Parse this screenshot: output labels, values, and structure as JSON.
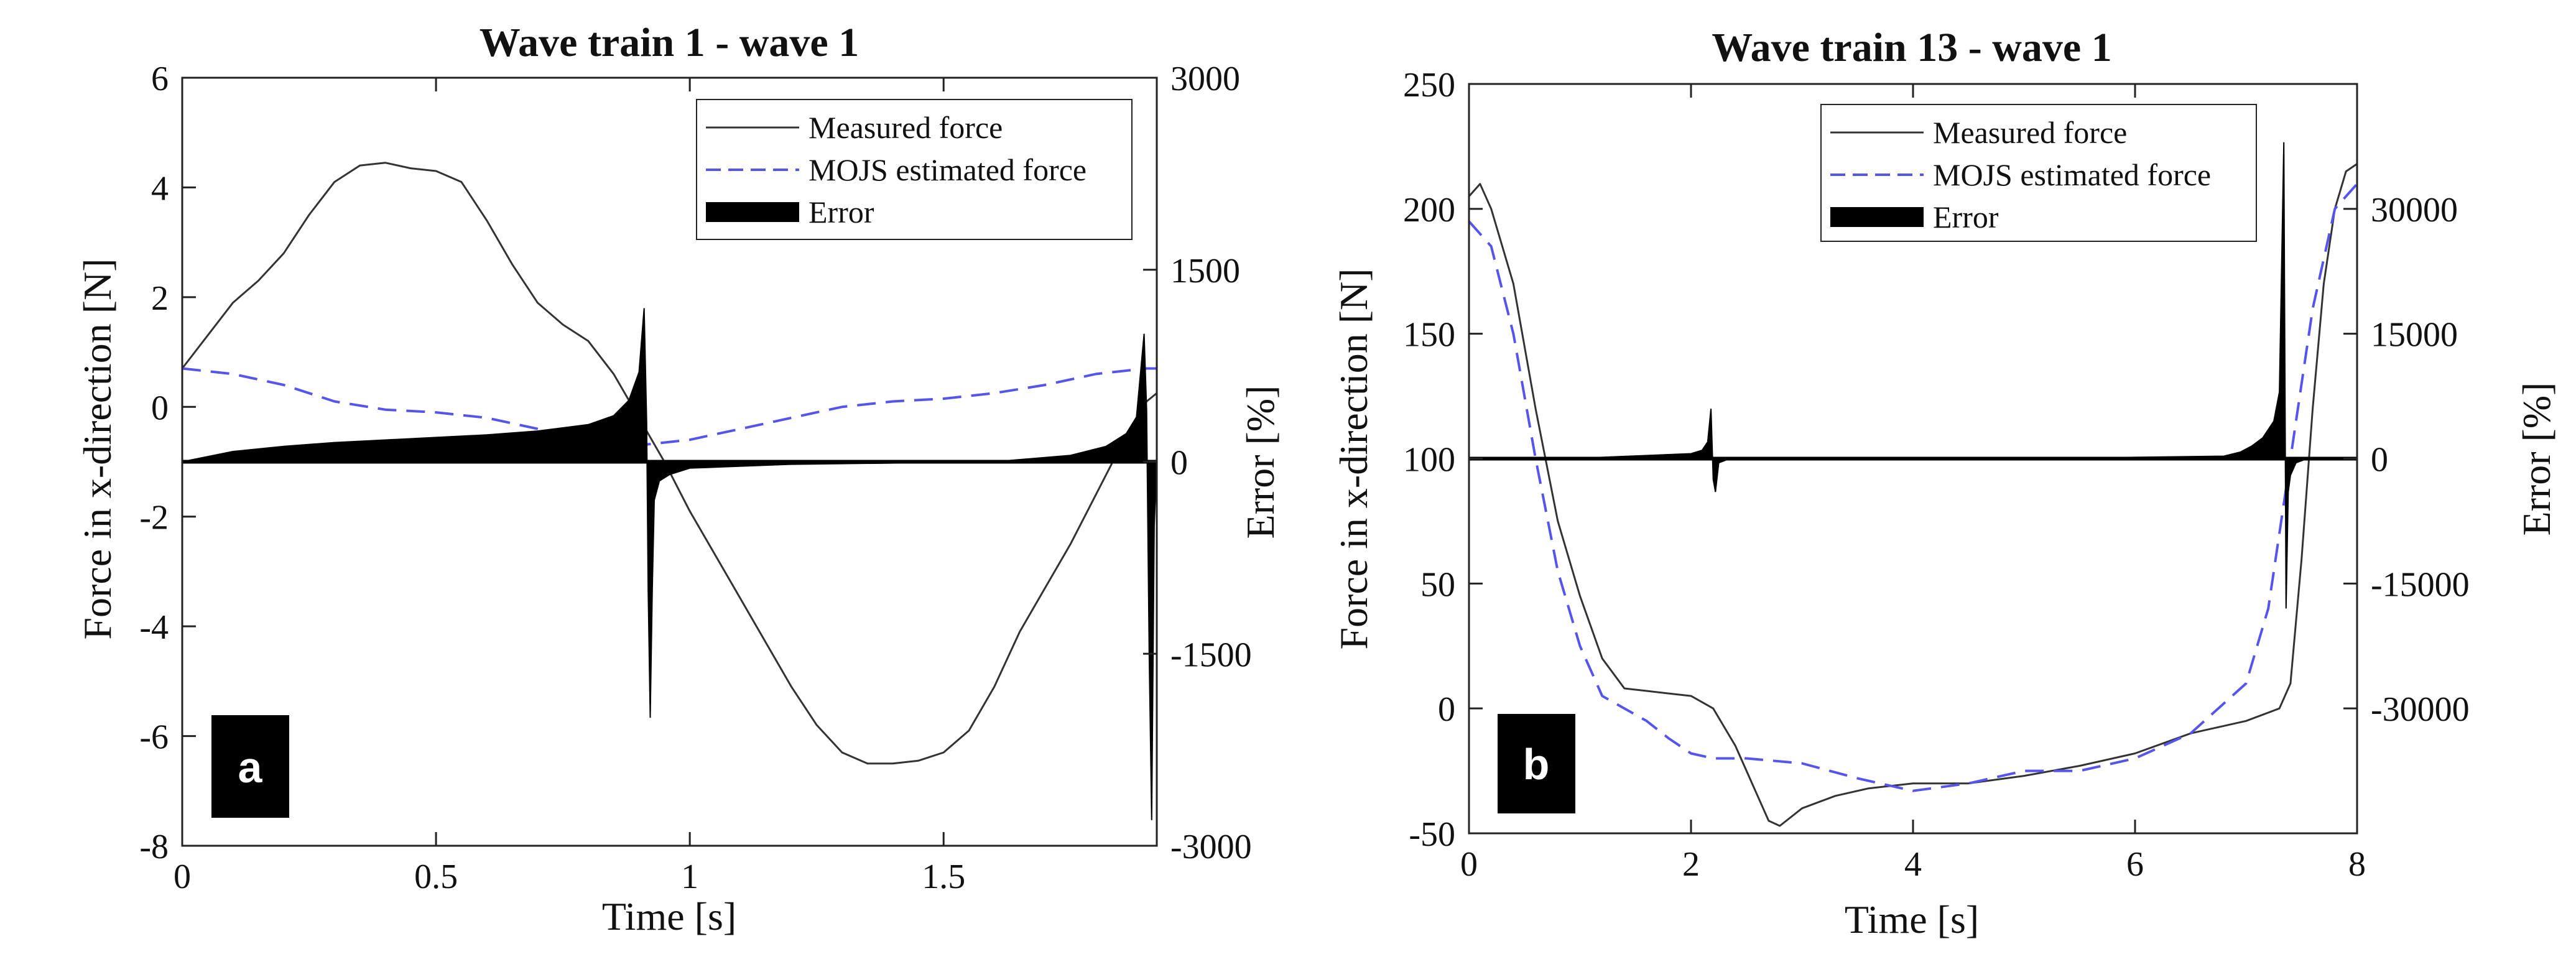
{
  "colors": {
    "measured": "#333333",
    "estimated": "#5555ee",
    "error": "#000000",
    "axis": "#222222",
    "badge_bg": "#000000",
    "badge_text": "#ffffff"
  },
  "chart_data": [
    {
      "type": "line",
      "panel_label": "a",
      "title": "Wave train 1 - wave 1",
      "xlabel": "Time [s]",
      "ylabel": "Force in x-direction [N]",
      "y2label": "Error [%]",
      "xlim": [
        0,
        1.92
      ],
      "ylim": [
        -8,
        6
      ],
      "y2lim": [
        -3000,
        3000
      ],
      "x_ticks": [
        0,
        0.5,
        1,
        1.5
      ],
      "x_tick_labels": [
        "0",
        "0.5",
        "1",
        "1.5"
      ],
      "y_ticks": [
        -8,
        -6,
        -4,
        -2,
        0,
        2,
        4,
        6
      ],
      "y_tick_labels": [
        "-8",
        "-6",
        "-4",
        "-2",
        "0",
        "2",
        "4",
        "6"
      ],
      "y2_ticks": [
        -3000,
        -1500,
        0,
        1500,
        3000
      ],
      "y2_tick_labels": [
        "-3000",
        "-1500",
        "0",
        "1500",
        "3000"
      ],
      "legend": {
        "position": "top-right",
        "entries": [
          "Measured force",
          "MOJS estimated force",
          "Error"
        ]
      },
      "series": [
        {
          "name": "Measured force",
          "axis": "left",
          "style": "solid",
          "x": [
            0,
            0.05,
            0.1,
            0.15,
            0.2,
            0.25,
            0.3,
            0.35,
            0.4,
            0.45,
            0.5,
            0.55,
            0.6,
            0.65,
            0.7,
            0.75,
            0.8,
            0.85,
            0.9,
            0.95,
            1.0,
            1.05,
            1.1,
            1.15,
            1.2,
            1.25,
            1.3,
            1.35,
            1.4,
            1.45,
            1.5,
            1.55,
            1.6,
            1.65,
            1.7,
            1.75,
            1.8,
            1.85,
            1.9,
            1.92
          ],
          "y": [
            0.7,
            1.3,
            1.9,
            2.3,
            2.8,
            3.5,
            4.1,
            4.4,
            4.45,
            4.35,
            4.3,
            4.1,
            3.4,
            2.6,
            1.9,
            1.5,
            1.2,
            0.6,
            -0.2,
            -1.0,
            -1.9,
            -2.7,
            -3.5,
            -4.3,
            -5.1,
            -5.8,
            -6.3,
            -6.5,
            -6.5,
            -6.45,
            -6.3,
            -5.9,
            -5.1,
            -4.1,
            -3.3,
            -2.5,
            -1.6,
            -0.7,
            0.1,
            0.25
          ]
        },
        {
          "name": "MOJS estimated force",
          "axis": "left",
          "style": "dashed",
          "x": [
            0,
            0.1,
            0.2,
            0.3,
            0.4,
            0.5,
            0.6,
            0.7,
            0.8,
            0.9,
            1.0,
            1.1,
            1.2,
            1.3,
            1.4,
            1.5,
            1.6,
            1.7,
            1.8,
            1.9,
            1.92
          ],
          "y": [
            0.7,
            0.6,
            0.4,
            0.1,
            -0.05,
            -0.1,
            -0.2,
            -0.4,
            -0.6,
            -0.7,
            -0.6,
            -0.4,
            -0.2,
            0.0,
            0.1,
            0.15,
            0.25,
            0.4,
            0.6,
            0.7,
            0.7
          ]
        },
        {
          "name": "Error",
          "axis": "right",
          "style": "filled",
          "x": [
            0,
            0.1,
            0.2,
            0.3,
            0.4,
            0.5,
            0.6,
            0.7,
            0.8,
            0.85,
            0.88,
            0.9,
            0.91,
            0.915,
            0.918,
            0.922,
            0.926,
            0.93,
            0.94,
            0.96,
            1.0,
            1.2,
            1.4,
            1.6,
            1.75,
            1.82,
            1.86,
            1.88,
            1.895,
            1.9,
            1.905,
            1.91,
            1.915,
            1.92
          ],
          "y": [
            0,
            80,
            120,
            150,
            170,
            190,
            210,
            240,
            290,
            360,
            480,
            700,
            1200,
            300,
            -1000,
            -2000,
            -1000,
            -300,
            -150,
            -100,
            -50,
            -20,
            -10,
            0,
            50,
            120,
            220,
            350,
            1000,
            400,
            -1500,
            -2800,
            -500,
            0
          ]
        }
      ]
    },
    {
      "type": "line",
      "panel_label": "b",
      "title": "Wave train 13 - wave 1",
      "xlabel": "Time [s]",
      "ylabel": "Force in x-direction [N]",
      "y2label": "Error [%]",
      "xlim": [
        0,
        8
      ],
      "ylim": [
        -50,
        250
      ],
      "y2lim": [
        -45000,
        45000
      ],
      "x_ticks": [
        0,
        2,
        4,
        6,
        8
      ],
      "x_tick_labels": [
        "0",
        "2",
        "4",
        "6",
        "8"
      ],
      "y_ticks": [
        -50,
        0,
        50,
        100,
        150,
        200,
        250
      ],
      "y_tick_labels": [
        "-50",
        "0",
        "50",
        "100",
        "150",
        "200",
        "250"
      ],
      "y2_ticks": [
        -30000,
        -15000,
        0,
        15000,
        30000
      ],
      "y2_tick_labels": [
        "-30000",
        "-15000",
        "0",
        "15000",
        "30000"
      ],
      "legend": {
        "position": "top-right",
        "entries": [
          "Measured force",
          "MOJS estimated force",
          "Error"
        ]
      },
      "series": [
        {
          "name": "Measured force",
          "axis": "left",
          "style": "solid",
          "x": [
            0,
            0.1,
            0.2,
            0.4,
            0.6,
            0.8,
            1.0,
            1.2,
            1.4,
            1.6,
            1.8,
            2.0,
            2.2,
            2.4,
            2.6,
            2.7,
            2.8,
            3.0,
            3.3,
            3.6,
            4.0,
            4.5,
            5.0,
            5.5,
            6.0,
            6.5,
            7.0,
            7.3,
            7.4,
            7.5,
            7.6,
            7.7,
            7.8,
            7.9,
            8.0
          ],
          "y": [
            205,
            210,
            200,
            170,
            120,
            75,
            45,
            20,
            8,
            7,
            6,
            5,
            0,
            -15,
            -35,
            -45,
            -47,
            -40,
            -35,
            -32,
            -30,
            -30,
            -27,
            -23,
            -18,
            -10,
            -5,
            0,
            10,
            60,
            120,
            170,
            200,
            215,
            218
          ]
        },
        {
          "name": "MOJS estimated force",
          "axis": "left",
          "style": "dashed",
          "x": [
            0,
            0.2,
            0.4,
            0.6,
            0.8,
            1.0,
            1.2,
            1.4,
            1.6,
            1.8,
            2.0,
            2.2,
            2.5,
            3.0,
            3.5,
            4.0,
            4.5,
            5.0,
            5.5,
            6.0,
            6.5,
            7.0,
            7.2,
            7.4,
            7.6,
            7.8,
            8.0
          ],
          "y": [
            195,
            185,
            150,
            100,
            55,
            25,
            5,
            0,
            -5,
            -12,
            -18,
            -20,
            -20,
            -22,
            -28,
            -33,
            -30,
            -25,
            -25,
            -20,
            -10,
            10,
            40,
            100,
            160,
            200,
            210
          ]
        },
        {
          "name": "Error",
          "axis": "right",
          "style": "filled",
          "x": [
            0,
            1.0,
            2.0,
            2.1,
            2.15,
            2.18,
            2.2,
            2.22,
            2.25,
            2.35,
            3.0,
            5.0,
            6.8,
            6.95,
            7.05,
            7.15,
            7.25,
            7.3,
            7.34,
            7.36,
            7.38,
            7.4,
            7.45,
            7.55,
            8.0
          ],
          "y": [
            0,
            50,
            600,
            1000,
            2000,
            6000,
            -2500,
            -4000,
            -500,
            0,
            0,
            0,
            300,
            800,
            1500,
            2500,
            4500,
            8000,
            38000,
            -18000,
            -4000,
            -2000,
            -500,
            0,
            0
          ]
        }
      ]
    }
  ]
}
